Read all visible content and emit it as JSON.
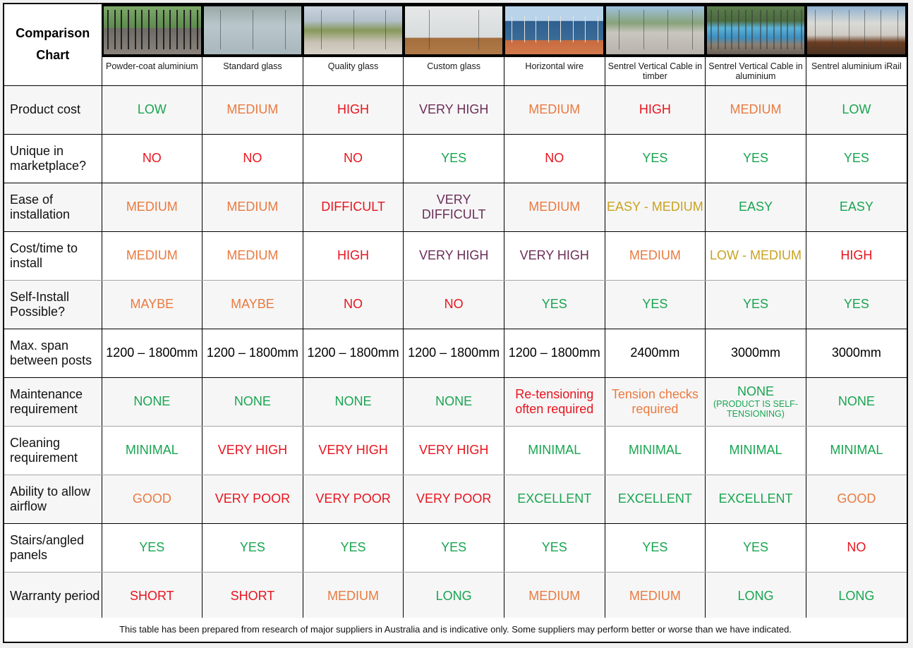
{
  "title": "Comparison Chart",
  "colors": {
    "green": "#18a550",
    "orange": "#ea7a3f",
    "red": "#e8141e",
    "purple": "#6b2e58",
    "gold": "#c9a21f",
    "black": "#000000",
    "alt_row_bg": "#f6f6f6"
  },
  "products": [
    {
      "name": "Powder-coat aluminium",
      "image": "powder-coat-aluminium-balustrade-photo"
    },
    {
      "name": "Standard glass",
      "image": "standard-glass-balustrade-photo"
    },
    {
      "name": "Quality glass",
      "image": "quality-glass-balustrade-photo"
    },
    {
      "name": "Custom glass",
      "image": "custom-glass-balustrade-photo"
    },
    {
      "name": "Horizontal wire",
      "image": "horizontal-wire-balustrade-photo"
    },
    {
      "name": "Sentrel Vertical Cable in timber",
      "image": "sentrel-vertical-cable-timber-photo"
    },
    {
      "name": "Sentrel Vertical Cable in aluminium",
      "image": "sentrel-vertical-cable-aluminium-photo"
    },
    {
      "name": "Sentrel aluminium iRail",
      "image": "sentrel-aluminium-irail-photo"
    }
  ],
  "rows": [
    {
      "label": "Product cost",
      "cells": [
        {
          "text": "LOW",
          "color": "green"
        },
        {
          "text": "MEDIUM",
          "color": "orange"
        },
        {
          "text": "HIGH",
          "color": "red"
        },
        {
          "text": "VERY HIGH",
          "color": "purple"
        },
        {
          "text": "MEDIUM",
          "color": "orange"
        },
        {
          "text": "HIGH",
          "color": "red"
        },
        {
          "text": "MEDIUM",
          "color": "orange"
        },
        {
          "text": "LOW",
          "color": "green"
        }
      ]
    },
    {
      "label": "Unique in marketplace?",
      "cells": [
        {
          "text": "NO",
          "color": "red"
        },
        {
          "text": "NO",
          "color": "red"
        },
        {
          "text": "NO",
          "color": "red"
        },
        {
          "text": "YES",
          "color": "green"
        },
        {
          "text": "NO",
          "color": "red"
        },
        {
          "text": "YES",
          "color": "green"
        },
        {
          "text": "YES",
          "color": "green"
        },
        {
          "text": "YES",
          "color": "green"
        }
      ]
    },
    {
      "label": "Ease of installation",
      "cells": [
        {
          "text": "MEDIUM",
          "color": "orange"
        },
        {
          "text": "MEDIUM",
          "color": "orange"
        },
        {
          "text": "DIFFICULT",
          "color": "red"
        },
        {
          "text": "VERY DIFFICULT",
          "color": "purple"
        },
        {
          "text": "MEDIUM",
          "color": "orange"
        },
        {
          "text": "EASY - MEDIUM",
          "color": "gold"
        },
        {
          "text": "EASY",
          "color": "green"
        },
        {
          "text": "EASY",
          "color": "green"
        }
      ]
    },
    {
      "label": "Cost/time to install",
      "cells": [
        {
          "text": "MEDIUM",
          "color": "orange"
        },
        {
          "text": "MEDIUM",
          "color": "orange"
        },
        {
          "text": "HIGH",
          "color": "red"
        },
        {
          "text": "VERY HIGH",
          "color": "purple"
        },
        {
          "text": "VERY HIGH",
          "color": "purple"
        },
        {
          "text": "MEDIUM",
          "color": "orange"
        },
        {
          "text": "LOW - MEDIUM",
          "color": "gold"
        },
        {
          "text": "HIGH",
          "color": "red"
        }
      ]
    },
    {
      "label": "Self-Install Possible?",
      "cells": [
        {
          "text": "MAYBE",
          "color": "orange"
        },
        {
          "text": "MAYBE",
          "color": "orange"
        },
        {
          "text": "NO",
          "color": "red"
        },
        {
          "text": "NO",
          "color": "red"
        },
        {
          "text": "YES",
          "color": "green"
        },
        {
          "text": "YES",
          "color": "green"
        },
        {
          "text": "YES",
          "color": "green"
        },
        {
          "text": "YES",
          "color": "green"
        }
      ]
    },
    {
      "label": "Max. span between posts",
      "cells": [
        {
          "text": "1200 – 1800mm",
          "color": "black"
        },
        {
          "text": "1200 – 1800mm",
          "color": "black"
        },
        {
          "text": "1200 – 1800mm",
          "color": "black"
        },
        {
          "text": "1200 – 1800mm",
          "color": "black"
        },
        {
          "text": "1200 – 1800mm",
          "color": "black"
        },
        {
          "text": "2400mm",
          "color": "black"
        },
        {
          "text": "3000mm",
          "color": "black"
        },
        {
          "text": "3000mm",
          "color": "black"
        }
      ]
    },
    {
      "label": "Maintenance requirement",
      "cells": [
        {
          "text": "NONE",
          "color": "green"
        },
        {
          "text": "NONE",
          "color": "green"
        },
        {
          "text": "NONE",
          "color": "green"
        },
        {
          "text": "NONE",
          "color": "green"
        },
        {
          "text": "Re-tensioning often required",
          "color": "red"
        },
        {
          "text": "Tension checks required",
          "color": "orange"
        },
        {
          "text": "NONE",
          "sub": "(PRODUCT IS SELF-TENSIONING)",
          "color": "green"
        },
        {
          "text": "NONE",
          "color": "green"
        }
      ]
    },
    {
      "label": "Cleaning requirement",
      "cells": [
        {
          "text": "MINIMAL",
          "color": "green"
        },
        {
          "text": "VERY HIGH",
          "color": "red"
        },
        {
          "text": "VERY HIGH",
          "color": "red"
        },
        {
          "text": "VERY HIGH",
          "color": "red"
        },
        {
          "text": "MINIMAL",
          "color": "green"
        },
        {
          "text": "MINIMAL",
          "color": "green"
        },
        {
          "text": "MINIMAL",
          "color": "green"
        },
        {
          "text": "MINIMAL",
          "color": "green"
        }
      ]
    },
    {
      "label": "Ability to allow airflow",
      "cells": [
        {
          "text": "GOOD",
          "color": "orange"
        },
        {
          "text": "VERY POOR",
          "color": "red"
        },
        {
          "text": "VERY POOR",
          "color": "red"
        },
        {
          "text": "VERY POOR",
          "color": "red"
        },
        {
          "text": "EXCELLENT",
          "color": "green"
        },
        {
          "text": "EXCELLENT",
          "color": "green"
        },
        {
          "text": "EXCELLENT",
          "color": "green"
        },
        {
          "text": "GOOD",
          "color": "orange"
        }
      ]
    },
    {
      "label": "Stairs/angled panels",
      "cells": [
        {
          "text": "YES",
          "color": "green"
        },
        {
          "text": "YES",
          "color": "green"
        },
        {
          "text": "YES",
          "color": "green"
        },
        {
          "text": "YES",
          "color": "green"
        },
        {
          "text": "YES",
          "color": "green"
        },
        {
          "text": "YES",
          "color": "green"
        },
        {
          "text": "YES",
          "color": "green"
        },
        {
          "text": "NO",
          "color": "red"
        }
      ]
    },
    {
      "label": "Warranty period",
      "cells": [
        {
          "text": "SHORT",
          "color": "red"
        },
        {
          "text": "SHORT",
          "color": "red"
        },
        {
          "text": "MEDIUM",
          "color": "orange"
        },
        {
          "text": "LONG",
          "color": "green"
        },
        {
          "text": "MEDIUM",
          "color": "orange"
        },
        {
          "text": "MEDIUM",
          "color": "orange"
        },
        {
          "text": "LONG",
          "color": "green"
        },
        {
          "text": "LONG",
          "color": "green"
        }
      ]
    }
  ],
  "footer": "This table has been prepared from research of major suppliers in Australia and is indicative only. Some suppliers may perform better or worse than we have indicated."
}
